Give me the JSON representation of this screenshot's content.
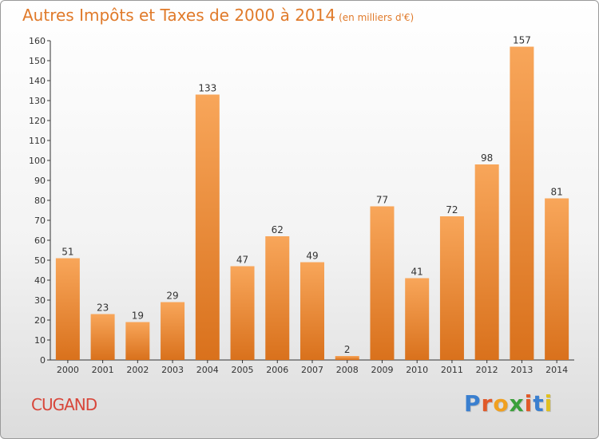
{
  "header": {
    "title": "Autres Impôts et Taxes de 2000 à 2014",
    "unit": "(en milliers d'€)"
  },
  "footer": {
    "commune": "CUGAND",
    "logo_text": "Proxiti",
    "logo_colors": [
      "#3a7fcf",
      "#e05a2a",
      "#f0a020",
      "#3aa03a",
      "#e05a2a",
      "#3a7fcf",
      "#e0c020"
    ]
  },
  "chart_data": {
    "type": "bar",
    "title": "Autres Impôts et Taxes de 2000 à 2014",
    "subtitle": "(en milliers d'€)",
    "xlabel": "",
    "ylabel": "",
    "categories": [
      "2000",
      "2001",
      "2002",
      "2003",
      "2004",
      "2005",
      "2006",
      "2007",
      "2008",
      "2009",
      "2010",
      "2011",
      "2012",
      "2013",
      "2014"
    ],
    "values": [
      51,
      23,
      19,
      29,
      133,
      47,
      62,
      49,
      2,
      77,
      41,
      72,
      98,
      157,
      81
    ],
    "ylim": [
      0,
      160
    ],
    "yticks": [
      0,
      10,
      20,
      30,
      40,
      50,
      60,
      70,
      80,
      90,
      100,
      110,
      120,
      130,
      140,
      150,
      160
    ],
    "grid": false,
    "data_labels": true,
    "colors": {
      "bar_top": "#f8a65a",
      "bar_bottom": "#d9711c",
      "label": "#333333",
      "axis": "#333333"
    }
  }
}
